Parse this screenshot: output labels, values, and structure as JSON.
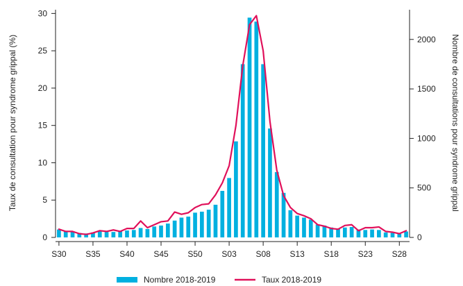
{
  "chart_data": {
    "type": "bar",
    "weeks": [
      "S30",
      "S31",
      "S32",
      "S33",
      "S34",
      "S35",
      "S36",
      "S37",
      "S38",
      "S39",
      "S40",
      "S41",
      "S42",
      "S43",
      "S44",
      "S45",
      "S46",
      "S47",
      "S48",
      "S49",
      "S50",
      "S51",
      "S52",
      "S01",
      "S02",
      "S03",
      "S04",
      "S05",
      "S06",
      "S07",
      "S08",
      "S09",
      "S10",
      "S11",
      "S12",
      "S13",
      "S14",
      "S15",
      "S16",
      "S17",
      "S18",
      "S19",
      "S20",
      "S21",
      "S22",
      "S23",
      "S24",
      "S25",
      "S26",
      "S27",
      "S28",
      "S29"
    ],
    "x_tick_labels": [
      "S30",
      "S35",
      "S40",
      "S45",
      "S50",
      "S03",
      "S08",
      "S13",
      "S18",
      "S23",
      "S28"
    ],
    "left_axis": {
      "label": "Taux de consultation pour syndrome grippal (%)",
      "ticks": [
        0,
        5,
        10,
        15,
        20,
        25,
        30
      ],
      "ylim": [
        0,
        30.5
      ]
    },
    "right_axis": {
      "label": "Nombre de consultations pour syndrome grippal",
      "ticks": [
        0,
        500,
        1000,
        1500,
        2000
      ],
      "ylim": [
        0,
        2300
      ]
    },
    "series": [
      {
        "name": "Nombre 2018-2019",
        "type": "bar",
        "axis": "right",
        "color": "#00b0e0",
        "values": [
          80,
          65,
          55,
          45,
          40,
          50,
          60,
          55,
          55,
          60,
          70,
          75,
          95,
          85,
          110,
          120,
          140,
          170,
          200,
          210,
          250,
          260,
          280,
          330,
          470,
          600,
          970,
          1750,
          2220,
          2180,
          1750,
          1100,
          660,
          450,
          275,
          220,
          200,
          180,
          130,
          120,
          100,
          90,
          100,
          105,
          80,
          75,
          80,
          75,
          50,
          45,
          35,
          60
        ]
      },
      {
        "name": "Taux 2018-2019",
        "type": "line",
        "axis": "left",
        "color": "#e0105a",
        "values": [
          1.1,
          0.8,
          0.8,
          0.5,
          0.4,
          0.6,
          0.9,
          0.8,
          1.0,
          0.8,
          1.2,
          1.2,
          2.2,
          1.3,
          1.7,
          2.1,
          2.2,
          3.4,
          3.1,
          3.3,
          4.0,
          4.4,
          4.5,
          5.7,
          7.3,
          9.6,
          15.0,
          23.0,
          28.5,
          29.7,
          25.0,
          15.5,
          9.0,
          5.6,
          4.0,
          3.2,
          2.9,
          2.5,
          1.7,
          1.5,
          1.2,
          1.1,
          1.6,
          1.7,
          0.9,
          1.3,
          1.3,
          1.4,
          0.8,
          0.7,
          0.5,
          0.9
        ]
      }
    ],
    "grid": false,
    "legend_position": "bottom"
  }
}
